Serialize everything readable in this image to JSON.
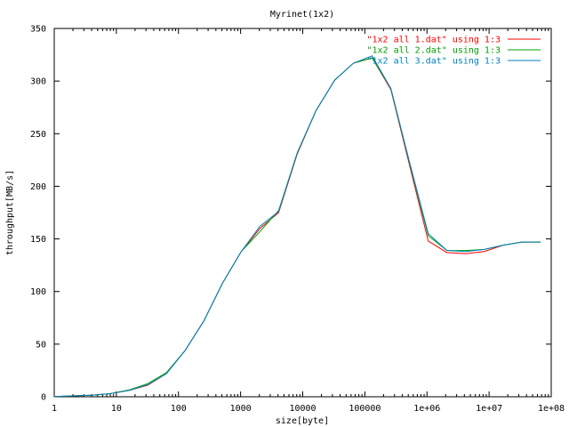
{
  "chart_data": {
    "type": "line",
    "title": "Myrinet(1x2)",
    "xlabel": "size[byte]",
    "ylabel": "throughput[MB/s]",
    "xscale": "log",
    "xlim": [
      1,
      100000000
    ],
    "ylim": [
      0,
      350
    ],
    "x_tick_values": [
      1,
      10,
      100,
      1000,
      10000,
      100000,
      1000000,
      10000000,
      100000000
    ],
    "x_tick_labels": [
      "1",
      "10",
      "100",
      "1000",
      "10000",
      "100000",
      "1e+06",
      "1e+07",
      "1e+08"
    ],
    "y_tick_values": [
      0,
      50,
      100,
      150,
      200,
      250,
      300,
      350
    ],
    "y_tick_labels": [
      "0",
      "50",
      "100",
      "150",
      "200",
      "250",
      "300",
      "350"
    ],
    "grid": false,
    "legend_position": "top-right",
    "series": [
      {
        "name": "\"1x2 all 1.dat\" using 1:3",
        "color": "#ff0000",
        "x": [
          1,
          2,
          4,
          8,
          16,
          32,
          64,
          128,
          256,
          512,
          1024,
          2048,
          4096,
          8192,
          16384,
          32768,
          65536,
          131072,
          262144,
          524288,
          1048576,
          2097152,
          4194304,
          8388608,
          16777216,
          33554432,
          67108864
        ],
        "y": [
          0.2,
          0.8,
          1.5,
          3,
          6,
          11,
          22,
          44,
          72,
          108,
          138,
          160,
          175,
          231,
          272,
          301,
          317,
          322,
          292,
          220,
          148,
          137,
          136,
          138,
          144,
          147,
          147
        ]
      },
      {
        "name": "\"1x2 all 2.dat\" using 1:3",
        "color": "#00a000",
        "x": [
          1,
          2,
          4,
          8,
          16,
          32,
          64,
          128,
          256,
          512,
          1024,
          2048,
          4096,
          8192,
          16384,
          32768,
          65536,
          131072,
          262144,
          524288,
          1048576,
          2097152,
          4194304,
          8388608,
          16777216,
          33554432,
          67108864
        ],
        "y": [
          0.2,
          0.8,
          1.5,
          3,
          6.5,
          12.5,
          23,
          44,
          72,
          108,
          138,
          157,
          177,
          232,
          272,
          301,
          317,
          322,
          293,
          222,
          153,
          139,
          139,
          140,
          144,
          147,
          147
        ]
      },
      {
        "name": "\"1x2 all 3.dat\" using 1:3",
        "color": "#0080c0",
        "x": [
          1,
          2,
          4,
          8,
          16,
          32,
          64,
          128,
          256,
          512,
          1024,
          2048,
          4096,
          8192,
          16384,
          32768,
          65536,
          131072,
          262144,
          524288,
          1048576,
          2097152,
          4194304,
          8388608,
          16777216,
          33554432,
          67108864
        ],
        "y": [
          0.2,
          0.8,
          1.5,
          3,
          6,
          11.5,
          22,
          44,
          72,
          108,
          138,
          162,
          176,
          232,
          272,
          301,
          317,
          324,
          293,
          223,
          155,
          139,
          138,
          140,
          144,
          147,
          147
        ]
      }
    ]
  }
}
